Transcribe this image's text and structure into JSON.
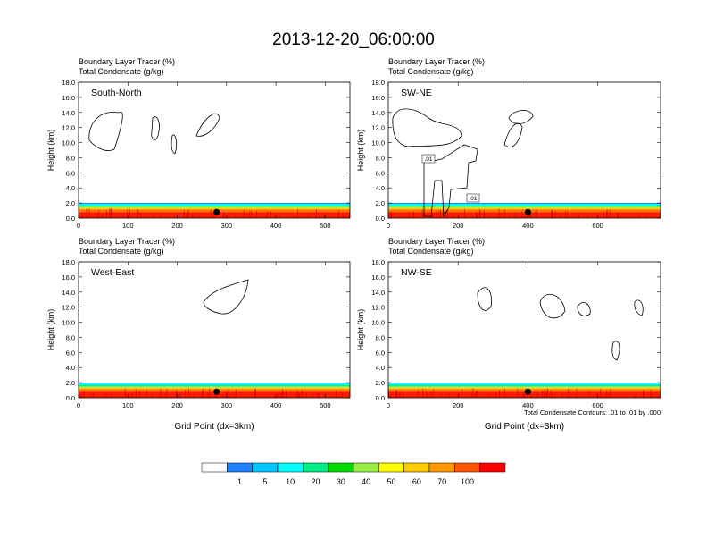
{
  "figure": {
    "title": "2013-12-20_06:00:00",
    "contour_note": "Total Condensate Contours: .01 to .01 by .000",
    "colorbar": {
      "labels": [
        "1",
        "5",
        "10",
        "20",
        "30",
        "40",
        "50",
        "60",
        "70",
        "100"
      ],
      "colors": [
        "#ffffff",
        "#1e82ff",
        "#00c8ff",
        "#00ffff",
        "#00ee88",
        "#00dd00",
        "#99ee44",
        "#ffff00",
        "#ffcc00",
        "#ff9900",
        "#ff5500",
        "#ff0000"
      ]
    }
  },
  "chart_data": [
    {
      "type": "heatmap",
      "header_line1": "Boundary Layer Tracer   (%)",
      "header_line2": "Total Condensate   (g/kg)",
      "label": "South-North",
      "xlabel": "",
      "ylabel": "Height (km)",
      "xlim": [
        0,
        550
      ],
      "ylim": [
        0,
        18
      ],
      "xticks": [
        "0",
        "100",
        "200",
        "300",
        "400",
        "500"
      ],
      "yticks": [
        "0.0",
        "2.0",
        "4.0",
        "6.0",
        "8.0",
        "10.0",
        "12.0",
        "14.0",
        "16.0",
        "18.0"
      ],
      "marker_x": 280,
      "contour_labels": []
    },
    {
      "type": "heatmap",
      "header_line1": "Boundary Layer Tracer   (%)",
      "header_line2": "Total Condensate   (g/kg)",
      "label": "SW-NE",
      "xlabel": "",
      "ylabel": "Height (km)",
      "xlim": [
        0,
        780
      ],
      "ylim": [
        0,
        18
      ],
      "xticks": [
        "0",
        "200",
        "400",
        "600"
      ],
      "yticks": [
        "0.0",
        "2.0",
        "4.0",
        "6.0",
        "8.0",
        "10.0",
        "12.0",
        "14.0",
        "16.0",
        "18.0"
      ],
      "marker_x": 400,
      "contour_labels": [
        ".01",
        ".01"
      ]
    },
    {
      "type": "heatmap",
      "header_line1": "Boundary Layer Tracer   (%)",
      "header_line2": "Total Condensate   (g/kg)",
      "label": "West-East",
      "xlabel": "Grid Point (dx=3km)",
      "ylabel": "Height (km)",
      "xlim": [
        0,
        550
      ],
      "ylim": [
        0,
        18
      ],
      "xticks": [
        "0",
        "100",
        "200",
        "300",
        "400",
        "500"
      ],
      "yticks": [
        "0.0",
        "2.0",
        "4.0",
        "6.0",
        "8.0",
        "10.0",
        "12.0",
        "14.0",
        "16.0",
        "18.0"
      ],
      "marker_x": 280,
      "contour_labels": []
    },
    {
      "type": "heatmap",
      "header_line1": "Boundary Layer Tracer   (%)",
      "header_line2": "Total Condensate   (g/kg)",
      "label": "NW-SE",
      "xlabel": "Grid Point (dx=3km)",
      "ylabel": "Height (km)",
      "xlim": [
        0,
        780
      ],
      "ylim": [
        0,
        18
      ],
      "xticks": [
        "0",
        "200",
        "400",
        "600"
      ],
      "yticks": [
        "0.0",
        "2.0",
        "4.0",
        "6.0",
        "8.0",
        "10.0",
        "12.0",
        "14.0",
        "16.0",
        "18.0"
      ],
      "marker_x": 400,
      "contour_labels": []
    }
  ]
}
